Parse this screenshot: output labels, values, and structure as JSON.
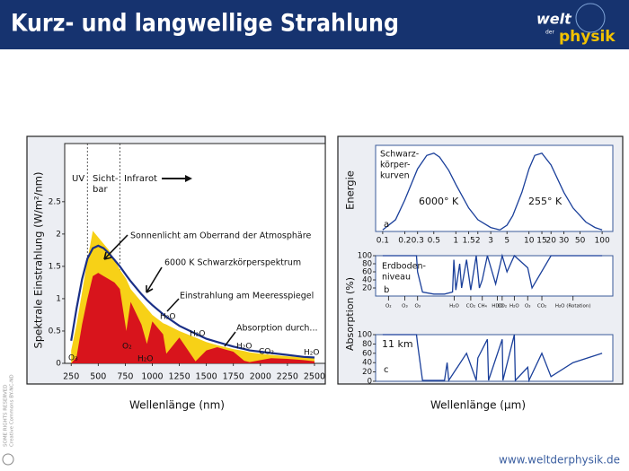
{
  "header": {
    "title": "Kurz- und langwellige Strahlung",
    "logo_top": "welt",
    "logo_small": "der",
    "logo_bottom": "physik"
  },
  "footer": {
    "url": "www.weltderphysik.de",
    "license": "SOME RIGHTS RESERVED",
    "license2": "Creative Commons BY-NC-ND"
  },
  "right_panel": {
    "absorption_label": "Absorption (%)"
  },
  "chart_data": [
    {
      "type": "line",
      "xlabel": "Wellenlänge (nm)",
      "ylabel": "Spektrale Einstrahlung (W/m²/nm)",
      "xlim": [
        190,
        2600
      ],
      "ylim": [
        0,
        3.4
      ],
      "xticks": [
        250,
        500,
        750,
        1000,
        1250,
        1500,
        1750,
        2000,
        2250,
        2500
      ],
      "yticks": [
        0,
        0.5,
        1,
        1.5,
        2,
        2.5
      ],
      "boundaries": [
        400,
        700
      ],
      "bands": [
        {
          "label": [
            "UV"
          ]
        },
        {
          "label": [
            "Sicht-",
            "bar"
          ]
        },
        {
          "label": [
            "Infrarot"
          ]
        }
      ],
      "x": [
        250,
        300,
        350,
        400,
        450,
        500,
        550,
        600,
        650,
        700,
        760,
        800,
        900,
        950,
        1000,
        1100,
        1130,
        1250,
        1400,
        1500,
        1600,
        1750,
        1850,
        1900,
        2000,
        2100,
        2250,
        2400,
        2500
      ],
      "series": [
        {
          "name": "Sonnenlicht am Oberrand der Atmosphäre",
          "style": "area",
          "color": "#f7d117",
          "values": [
            0.2,
            0.6,
            1.1,
            1.6,
            2.05,
            1.95,
            1.85,
            1.75,
            1.6,
            1.45,
            1.3,
            1.15,
            0.95,
            0.85,
            0.75,
            0.62,
            0.6,
            0.5,
            0.4,
            0.33,
            0.28,
            0.22,
            0.19,
            0.17,
            0.15,
            0.13,
            0.11,
            0.09,
            0.08
          ]
        },
        {
          "name": "Einstrahlung am Meeresspiegel",
          "style": "area",
          "color": "#d8141c",
          "values": [
            0,
            0.1,
            0.6,
            1.0,
            1.35,
            1.4,
            1.35,
            1.3,
            1.25,
            1.15,
            0.5,
            0.95,
            0.6,
            0.3,
            0.65,
            0.45,
            0.15,
            0.4,
            0.03,
            0.2,
            0.25,
            0.18,
            0.04,
            0.02,
            0.05,
            0.08,
            0.07,
            0.05,
            0.03
          ]
        },
        {
          "name": "6000 K Schwarzkörperspektrum",
          "style": "line",
          "color": "#1a2f86",
          "values": [
            0.35,
            0.85,
            1.3,
            1.62,
            1.78,
            1.82,
            1.78,
            1.7,
            1.6,
            1.5,
            1.36,
            1.27,
            1.07,
            0.98,
            0.9,
            0.76,
            0.72,
            0.58,
            0.46,
            0.38,
            0.33,
            0.26,
            0.22,
            0.2,
            0.18,
            0.16,
            0.13,
            0.1,
            0.09
          ]
        }
      ],
      "annotations": [
        "Sonnenlicht am Oberrand der Atmosphäre",
        "6000 K Schwarzkörperspektrum",
        "Einstrahlung am Meeresspiegel",
        "Absorption durch...",
        "H₂O",
        "H₂O",
        "O₂",
        "H₂O",
        "H₂O",
        "CO₂",
        "H₂O",
        "O₃"
      ]
    },
    {
      "type": "line",
      "xscale": "log",
      "xlabel": "Wellenlänge (µm)",
      "ylabel": "Energie",
      "xlim": [
        0.08,
        140
      ],
      "ylim": [
        0,
        1.1
      ],
      "xticks": [
        0.1,
        0.2,
        0.3,
        0.5,
        1,
        1.5,
        2,
        3,
        5,
        10,
        15,
        20,
        30,
        50,
        100
      ],
      "series": [
        {
          "name": "6000° K",
          "style": "line",
          "color": "#1a3f9a",
          "x": [
            0.1,
            0.15,
            0.2,
            0.3,
            0.4,
            0.5,
            0.6,
            0.8,
            1,
            1.5,
            2,
            3,
            4
          ],
          "values": [
            0.02,
            0.15,
            0.4,
            0.8,
            0.97,
            1.0,
            0.95,
            0.78,
            0.6,
            0.3,
            0.15,
            0.05,
            0.02
          ]
        },
        {
          "name": "255° K",
          "style": "line",
          "color": "#1a3f9a",
          "x": [
            4,
            5,
            6,
            8,
            10,
            12,
            15,
            20,
            30,
            40,
            60,
            80,
            100
          ],
          "values": [
            0.02,
            0.08,
            0.2,
            0.5,
            0.8,
            0.97,
            1.0,
            0.85,
            0.5,
            0.3,
            0.12,
            0.05,
            0.02
          ]
        }
      ],
      "note": [
        "Schwarz-",
        "körper-",
        "kurven"
      ],
      "label": "a"
    },
    {
      "type": "line",
      "xscale": "log",
      "xlim": [
        0.08,
        140
      ],
      "ylim": [
        0,
        100
      ],
      "yticks": [
        20,
        40,
        60,
        80,
        100
      ],
      "series": [
        {
          "name": "Erdbodenniveau",
          "style": "line",
          "color": "#1a3f9a",
          "x": [
            0.1,
            0.2,
            0.29,
            0.3,
            0.35,
            0.5,
            0.7,
            0.9,
            0.94,
            1.0,
            1.13,
            1.2,
            1.4,
            1.6,
            1.9,
            2.1,
            2.3,
            2.7,
            3.5,
            4.3,
            5,
            6.3,
            9.6,
            11,
            20,
            100
          ],
          "values": [
            100,
            100,
            100,
            60,
            10,
            5,
            5,
            10,
            90,
            15,
            80,
            20,
            90,
            15,
            100,
            20,
            40,
            100,
            30,
            100,
            60,
            100,
            70,
            20,
            100,
            100
          ]
        }
      ],
      "note": [
        "Erdboden-",
        "niveau"
      ],
      "label": "b",
      "molecules": [
        {
          "label": "O₂",
          "x": 0.12
        },
        {
          "label": "O₃",
          "x": 0.2
        },
        {
          "label": "O₃",
          "x": 0.3
        },
        {
          "label": "H₂O",
          "x": 0.95
        },
        {
          "label": "CO₂",
          "x": 1.6
        },
        {
          "label": "CH₄",
          "x": 2.3
        },
        {
          "label": "HDO",
          "x": 3.7
        },
        {
          "label": "CO₂",
          "x": 4.3
        },
        {
          "label": "H₂O",
          "x": 6.3
        },
        {
          "label": "O₃",
          "x": 9.6
        },
        {
          "label": "CO₂",
          "x": 15
        },
        {
          "label": "H₂O (Rotation)",
          "x": 40
        }
      ]
    },
    {
      "type": "line",
      "xscale": "log",
      "xlim": [
        0.08,
        140
      ],
      "ylim": [
        0,
        100
      ],
      "yticks": [
        0,
        20,
        40,
        60,
        80,
        100
      ],
      "series": [
        {
          "name": "11 km",
          "style": "line",
          "color": "#1a3f9a",
          "x": [
            0.1,
            0.2,
            0.29,
            0.3,
            0.35,
            0.7,
            0.76,
            0.8,
            1.4,
            1.9,
            2.0,
            2.7,
            2.8,
            4.3,
            4.4,
            6.3,
            6.5,
            9.6,
            10,
            15,
            20,
            40,
            100
          ],
          "values": [
            100,
            100,
            100,
            80,
            2,
            2,
            40,
            2,
            60,
            2,
            50,
            90,
            2,
            90,
            2,
            100,
            2,
            30,
            2,
            60,
            10,
            40,
            60
          ]
        }
      ],
      "label": "c"
    }
  ]
}
